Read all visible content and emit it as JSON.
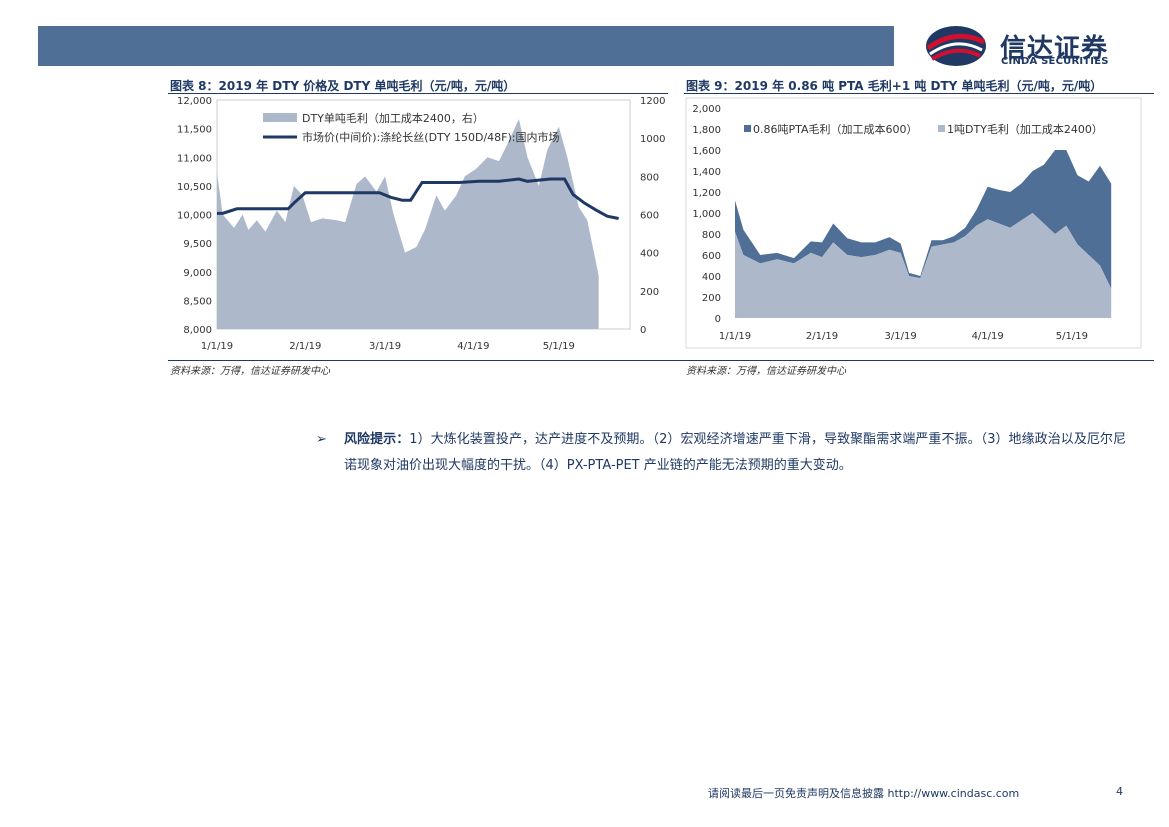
{
  "header": {
    "logo_cn": "信达证券",
    "logo_en": "CINDA SECURITIES"
  },
  "figure8": {
    "title": "图表 8：2019 年 DTY 价格及 DTY 单吨毛利（元/吨，元/吨）",
    "source": "资料来源：万得，信达证券研发中心",
    "chart_data": {
      "type": "area+line",
      "x_ticks": [
        "1/1/19",
        "2/1/19",
        "3/1/19",
        "4/1/19",
        "5/1/19"
      ],
      "y_left_ticks": [
        "12,000",
        "11,500",
        "11,000",
        "10,500",
        "10,000",
        "9,500",
        "9,000",
        "8,500",
        "8,000"
      ],
      "y_right_ticks": [
        "1200",
        "1000",
        "800",
        "600",
        "400",
        "200",
        "0"
      ],
      "ylim_left": [
        8000,
        12000
      ],
      "ylim_right": [
        0,
        1200
      ],
      "legend": "top-left",
      "series": [
        {
          "name": "DTY单吨毛利（加工成本2400，右）",
          "axis": "right",
          "color": "#adb9ca",
          "x": [
            "1/1/19",
            "1/3/19",
            "1/7/19",
            "1/10/19",
            "1/12/19",
            "1/15/19",
            "1/18/19",
            "1/22/19",
            "1/25/19",
            "1/28/19",
            "1/31/19",
            "2/3/19",
            "2/7/19",
            "2/12/19",
            "2/15/19",
            "2/19/19",
            "2/22/19",
            "2/26/19",
            "3/1/19",
            "3/4/19",
            "3/8/19",
            "3/12/19",
            "3/15/19",
            "3/19/19",
            "3/22/19",
            "3/26/19",
            "3/29/19",
            "4/2/19",
            "4/6/19",
            "4/10/19",
            "4/13/19",
            "4/17/19",
            "4/20/19",
            "4/24/19",
            "4/27/19",
            "5/1/19",
            "5/4/19",
            "5/8/19",
            "5/11/19",
            "5/15/19"
          ],
          "values": [
            820,
            600,
            530,
            600,
            520,
            570,
            510,
            620,
            560,
            750,
            700,
            560,
            580,
            570,
            560,
            760,
            800,
            720,
            800,
            600,
            400,
            430,
            520,
            700,
            620,
            700,
            800,
            840,
            900,
            880,
            970,
            1100,
            900,
            750,
            940,
            1060,
            900,
            640,
            570,
            280
          ]
        },
        {
          "name": "市场价(中间价):涤纶长丝(DTY 150D/48F):国内市场",
          "axis": "left",
          "color": "#1f3864",
          "x": [
            "1/1/19",
            "1/3/19",
            "1/8/19",
            "1/14/19",
            "1/20/19",
            "1/26/19",
            "1/28/19",
            "2/1/19",
            "2/10/19",
            "2/20/19",
            "2/27/19",
            "3/3/19",
            "3/7/19",
            "3/10/19",
            "3/14/19",
            "3/20/19",
            "3/27/19",
            "4/3/19",
            "4/10/19",
            "4/17/19",
            "4/20/19",
            "4/28/19",
            "5/3/19",
            "5/6/19",
            "5/10/19",
            "5/14/19",
            "5/18/19",
            "5/22/19"
          ],
          "values": [
            10020,
            10020,
            10100,
            10100,
            10100,
            10100,
            10200,
            10380,
            10380,
            10380,
            10380,
            10300,
            10250,
            10250,
            10560,
            10560,
            10560,
            10580,
            10580,
            10620,
            10580,
            10620,
            10620,
            10350,
            10200,
            10080,
            9970,
            9930
          ]
        }
      ]
    }
  },
  "figure9": {
    "title": "图表 9：2019 年 0.86 吨 PTA 毛利+1 吨 DTY 单吨毛利（元/吨，元/吨）",
    "source": "资料来源：万得，信达证券研发中心",
    "chart_data": {
      "type": "stacked-area",
      "x_ticks": [
        "1/1/19",
        "2/1/19",
        "3/1/19",
        "4/1/19",
        "5/1/19"
      ],
      "y_ticks": [
        "2,000",
        "1,800",
        "1,600",
        "1,400",
        "1,200",
        "1,000",
        "800",
        "600",
        "400",
        "200",
        "0"
      ],
      "ylim": [
        0,
        2000
      ],
      "legend": "top",
      "series": [
        {
          "name": "0.86吨PTA毛利（加工成本600）",
          "color": "#4f6f96",
          "x": [
            "1/1/19",
            "1/4/19",
            "1/10/19",
            "1/16/19",
            "1/22/19",
            "1/28/19",
            "2/1/19",
            "2/5/19",
            "2/10/19",
            "2/15/19",
            "2/20/19",
            "2/25/19",
            "3/1/19",
            "3/4/19",
            "3/8/19",
            "3/12/19",
            "3/16/19",
            "3/20/19",
            "3/24/19",
            "3/28/19",
            "4/1/19",
            "4/5/19",
            "4/9/19",
            "4/13/19",
            "4/17/19",
            "4/21/19",
            "4/25/19",
            "4/29/19",
            "5/3/19",
            "5/7/19",
            "5/11/19",
            "5/15/19"
          ],
          "values": [
            300,
            240,
            80,
            60,
            50,
            110,
            140,
            180,
            160,
            140,
            120,
            120,
            90,
            30,
            20,
            60,
            40,
            60,
            80,
            150,
            310,
            320,
            340,
            350,
            400,
            560,
            800,
            720,
            660,
            700,
            950,
            1000
          ]
        },
        {
          "name": "1吨DTY毛利（加工成本2400）",
          "color": "#adb9ca",
          "x": [
            "1/1/19",
            "1/4/19",
            "1/10/19",
            "1/16/19",
            "1/22/19",
            "1/28/19",
            "2/1/19",
            "2/5/19",
            "2/10/19",
            "2/15/19",
            "2/20/19",
            "2/25/19",
            "3/1/19",
            "3/4/19",
            "3/8/19",
            "3/12/19",
            "3/16/19",
            "3/20/19",
            "3/24/19",
            "3/28/19",
            "4/1/19",
            "4/5/19",
            "4/9/19",
            "4/13/19",
            "4/17/19",
            "4/21/19",
            "4/25/19",
            "4/29/19",
            "5/3/19",
            "5/7/19",
            "5/11/19",
            "5/15/19"
          ],
          "values": [
            820,
            600,
            520,
            560,
            520,
            620,
            580,
            720,
            600,
            580,
            600,
            650,
            620,
            400,
            380,
            680,
            700,
            720,
            780,
            880,
            940,
            900,
            860,
            930,
            1000,
            900,
            800,
            880,
            700,
            600,
            500,
            280
          ]
        }
      ]
    }
  },
  "risk": {
    "arrow": "➢",
    "label": "风险提示：",
    "text": "1）大炼化装置投产，达产进度不及预期。（2）宏观经济增速严重下滑，导致聚酯需求端严重不振。（3）地缘政治以及厄尔尼诺现象对油价出现大幅度的干扰。（4）PX-PTA-PET 产业链的产能无法预期的重大变动。"
  },
  "footer": {
    "disclaimer": "请阅读最后一页免责声明及信息披露 http://www.cindasc.com",
    "page": "4"
  }
}
